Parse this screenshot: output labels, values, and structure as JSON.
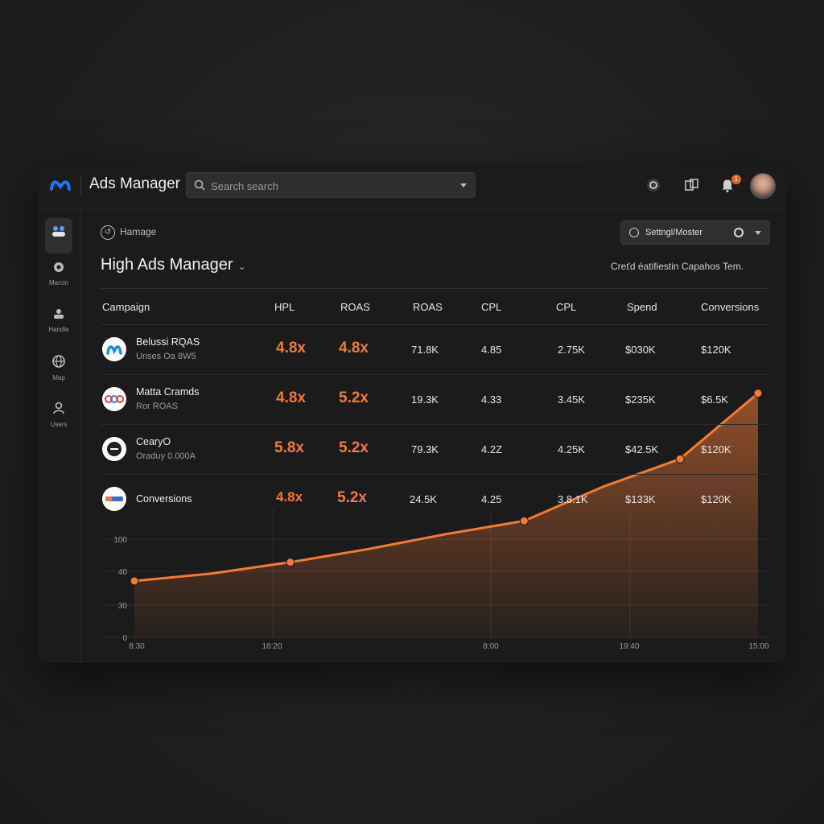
{
  "topbar": {
    "app_title": "Ads Manager",
    "search_placeholder": "Search search",
    "notification_count": "1",
    "icons": [
      "help-icon",
      "gallery-icon",
      "bell-icon"
    ]
  },
  "sidebar": {
    "items": [
      {
        "icon": "people-icon",
        "label": ""
      },
      {
        "icon": "target-icon",
        "label": "Marcin"
      },
      {
        "icon": "user-icon",
        "label": "Handle"
      },
      {
        "icon": "globe-icon",
        "label": "Map"
      },
      {
        "icon": "person-icon",
        "label": "Users"
      }
    ]
  },
  "header": {
    "breadcrumb": "Hamage",
    "title": "High Ads Manager",
    "settings_label": "Settngl/Moster",
    "right_note": "Creťd éatifiestin Сapahos  Tem."
  },
  "table": {
    "columns": [
      "Campaign",
      "HPL",
      "ROAS",
      "ROAS",
      "CPL",
      "CPL",
      "Spend",
      "Conversions"
    ],
    "rows": [
      {
        "name": "Belussi RQAS",
        "sub": "Unses Oa 8W5",
        "cells": [
          "4.8x",
          "4.8x",
          "71.8K",
          "4.85",
          "2.75K",
          "$030K",
          "$120K"
        ]
      },
      {
        "name": "Matta Cramds",
        "sub": "Ror ROAS",
        "cells": [
          "4.8x",
          "5.2x",
          "19.3K",
          "4.33",
          "3.45K",
          "$235K",
          "$6.5K"
        ]
      },
      {
        "name": "CearyO",
        "sub": "Oraduy 0.000A",
        "cells": [
          "5.8x",
          "5.2x",
          "79.3K",
          "4.2Z",
          "4.25K",
          "$42.5K",
          "$120K"
        ]
      },
      {
        "name": "Conversions",
        "sub": "",
        "cells": [
          "4.8x",
          "5.2x",
          "24.5K",
          "4.25",
          "3.8.1K",
          "$133K",
          "$120K"
        ]
      }
    ]
  },
  "chart_data": {
    "type": "area",
    "title": "",
    "xlabel": "",
    "ylabel": "",
    "x_ticks": [
      "8:30",
      "16:20",
      "8:00",
      "19:40",
      "15:00"
    ],
    "y_ticks": [
      "0",
      "30",
      "40",
      "100"
    ],
    "series": [
      {
        "color": "#f47a35",
        "x": [
          0,
          1,
          2,
          3,
          4,
          5,
          6,
          7,
          8
        ],
        "values": [
          30,
          34,
          40,
          47,
          55,
          62,
          80,
          95,
          130
        ]
      }
    ],
    "grid": true
  },
  "colors": {
    "accent": "#f47a35",
    "brand": "#1877f2",
    "badge": "#f25c2a"
  }
}
